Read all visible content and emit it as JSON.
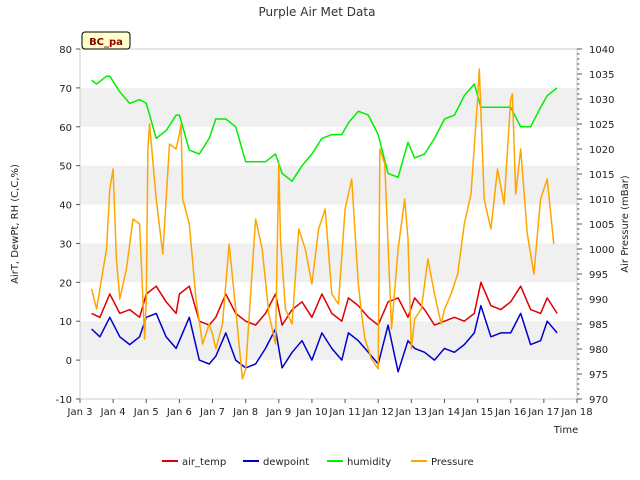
{
  "chart_data": {
    "type": "line",
    "title": "Purple Air Met Data",
    "xlabel": "Time",
    "ylabel": "AirT, DewPt, RH (C,C,%)",
    "y2label": "Air Pressure (mBar)",
    "badge": "BC_pa",
    "xlim": [
      3,
      18
    ],
    "ylim": [
      -10,
      80
    ],
    "y2lim": [
      970,
      1040
    ],
    "x_ticks": [
      {
        "v": 3,
        "label": "Jan 3"
      },
      {
        "v": 4,
        "label": "Jan 4"
      },
      {
        "v": 5,
        "label": "Jan 5"
      },
      {
        "v": 6,
        "label": "Jan 6"
      },
      {
        "v": 7,
        "label": "Jan 7"
      },
      {
        "v": 8,
        "label": "Jan 8"
      },
      {
        "v": 9,
        "label": "Jan 9"
      },
      {
        "v": 10,
        "label": "Jan 10"
      },
      {
        "v": 11,
        "label": "Jan 11"
      },
      {
        "v": 12,
        "label": "Jan 12"
      },
      {
        "v": 13,
        "label": "Jan 13"
      },
      {
        "v": 14,
        "label": "Jan 14"
      },
      {
        "v": 15,
        "label": "Jan 15"
      },
      {
        "v": 16,
        "label": "Jan 16"
      },
      {
        "v": 17,
        "label": "Jan 17"
      },
      {
        "v": 18,
        "label": "Jan 18"
      }
    ],
    "y_ticks": [
      -10,
      0,
      10,
      20,
      30,
      40,
      50,
      60,
      70,
      80
    ],
    "y2_ticks": [
      970,
      975,
      980,
      985,
      990,
      995,
      1000,
      1005,
      1010,
      1015,
      1020,
      1025,
      1030,
      1035,
      1040
    ],
    "grid": "horizontal bands",
    "legend_position": "bottom",
    "series": [
      {
        "name": "air_temp",
        "color": "#dd0000",
        "axis": "left",
        "x": [
          3.35,
          3.6,
          3.9,
          4.2,
          4.5,
          4.8,
          5.0,
          5.3,
          5.6,
          5.9,
          6.0,
          6.3,
          6.6,
          6.9,
          7.1,
          7.4,
          7.7,
          8.0,
          8.3,
          8.6,
          8.9,
          9.1,
          9.4,
          9.7,
          10.0,
          10.3,
          10.6,
          10.9,
          11.1,
          11.4,
          11.7,
          12.0,
          12.3,
          12.6,
          12.9,
          13.1,
          13.4,
          13.7,
          14.0,
          14.3,
          14.6,
          14.9,
          15.1,
          15.4,
          15.7,
          16.0,
          16.3,
          16.6,
          16.9,
          17.1,
          17.4
        ],
        "y": [
          12,
          11,
          17,
          12,
          13,
          11,
          17,
          19,
          15,
          12,
          17,
          19,
          10,
          9,
          11,
          17,
          12,
          10,
          9,
          12,
          17,
          9,
          13,
          15,
          11,
          17,
          12,
          10,
          16,
          14,
          11,
          9,
          15,
          16,
          11,
          16,
          13,
          9,
          10,
          11,
          10,
          12,
          20,
          14,
          13,
          15,
          19,
          13,
          12,
          16,
          12
        ]
      },
      {
        "name": "dewpoint",
        "color": "#0000cc",
        "axis": "left",
        "x": [
          3.35,
          3.6,
          3.9,
          4.2,
          4.5,
          4.8,
          5.0,
          5.3,
          5.6,
          5.9,
          6.0,
          6.3,
          6.6,
          6.9,
          7.1,
          7.4,
          7.7,
          8.0,
          8.3,
          8.6,
          8.9,
          9.1,
          9.4,
          9.7,
          10.0,
          10.3,
          10.6,
          10.9,
          11.1,
          11.4,
          11.7,
          12.0,
          12.3,
          12.6,
          12.9,
          13.1,
          13.4,
          13.7,
          14.0,
          14.3,
          14.6,
          14.9,
          15.1,
          15.4,
          15.7,
          16.0,
          16.3,
          16.6,
          16.9,
          17.1,
          17.4
        ],
        "y": [
          8,
          6,
          11,
          6,
          4,
          6,
          11,
          12,
          6,
          3,
          5,
          11,
          0,
          -1,
          1,
          7,
          0,
          -2,
          -1,
          3,
          8,
          -2,
          2,
          5,
          0,
          7,
          3,
          0,
          7,
          5,
          2,
          -1,
          9,
          -3,
          5,
          3,
          2,
          0,
          3,
          2,
          4,
          7,
          14,
          6,
          7,
          7,
          12,
          4,
          5,
          10,
          7
        ]
      },
      {
        "name": "humidity",
        "color": "#00ee00",
        "axis": "left",
        "x": [
          3.35,
          3.5,
          3.8,
          3.9,
          4.2,
          4.5,
          4.8,
          5.0,
          5.3,
          5.6,
          5.9,
          6.0,
          6.3,
          6.6,
          6.9,
          7.1,
          7.4,
          7.7,
          8.0,
          8.3,
          8.6,
          8.9,
          9.1,
          9.4,
          9.7,
          10.0,
          10.3,
          10.6,
          10.9,
          11.1,
          11.4,
          11.7,
          12.0,
          12.3,
          12.6,
          12.9,
          13.1,
          13.4,
          13.7,
          14.0,
          14.3,
          14.6,
          14.9,
          15.1,
          15.4,
          15.7,
          16.0,
          16.3,
          16.6,
          16.9,
          17.1,
          17.4
        ],
        "y": [
          72,
          71,
          73,
          73,
          69,
          66,
          67,
          66,
          57,
          59,
          63,
          63,
          54,
          53,
          57,
          62,
          62,
          60,
          51,
          51,
          51,
          53,
          48,
          46,
          50,
          53,
          57,
          58,
          58,
          61,
          64,
          63,
          58,
          48,
          47,
          56,
          52,
          53,
          57,
          62,
          63,
          68,
          71,
          65,
          65,
          65,
          65,
          60,
          60,
          65,
          68,
          70
        ]
      },
      {
        "name": "Pressure",
        "color": "#ffa500",
        "axis": "right",
        "x": [
          3.35,
          3.5,
          3.8,
          3.9,
          4.0,
          4.1,
          4.2,
          4.4,
          4.6,
          4.8,
          4.95,
          5.0,
          5.05,
          5.1,
          5.3,
          5.5,
          5.7,
          5.9,
          6.0,
          6.05,
          6.1,
          6.3,
          6.5,
          6.7,
          6.9,
          7.0,
          7.1,
          7.3,
          7.5,
          7.7,
          7.9,
          8.0,
          8.1,
          8.3,
          8.5,
          8.7,
          8.9,
          9.0,
          9.05,
          9.2,
          9.4,
          9.6,
          9.8,
          10.0,
          10.2,
          10.4,
          10.6,
          10.8,
          11.0,
          11.2,
          11.4,
          11.5,
          11.6,
          11.8,
          12.0,
          12.05,
          12.2,
          12.4,
          12.6,
          12.8,
          12.9,
          13.0,
          13.1,
          13.3,
          13.5,
          13.7,
          13.9,
          14.0,
          14.2,
          14.4,
          14.6,
          14.8,
          15.0,
          15.05,
          15.2,
          15.4,
          15.6,
          15.8,
          16.0,
          16.05,
          16.15,
          16.3,
          16.5,
          16.7,
          16.9,
          17.1,
          17.3
        ],
        "y": [
          992,
          988,
          1000,
          1012,
          1016,
          998,
          990,
          996,
          1006,
          1005,
          982,
          990,
          1020,
          1025,
          1010,
          999,
          1021,
          1020,
          1023,
          1025,
          1010,
          1005,
          990,
          981,
          985,
          983,
          980,
          985,
          1001,
          988,
          974,
          976,
          986,
          1006,
          1000,
          987,
          981,
          1017,
          1002,
          988,
          985,
          1004,
          1000,
          993,
          1004,
          1008,
          991,
          989,
          1008,
          1014,
          993,
          987,
          982,
          978,
          976,
          1020,
          1017,
          984,
          1000,
          1010,
          1002,
          980,
          986,
          988,
          998,
          991,
          985,
          988,
          991,
          995,
          1005,
          1011,
          1030,
          1036,
          1010,
          1004,
          1016,
          1009,
          1030,
          1031,
          1011,
          1020,
          1003,
          995,
          1010,
          1014,
          1001
        ]
      }
    ]
  }
}
